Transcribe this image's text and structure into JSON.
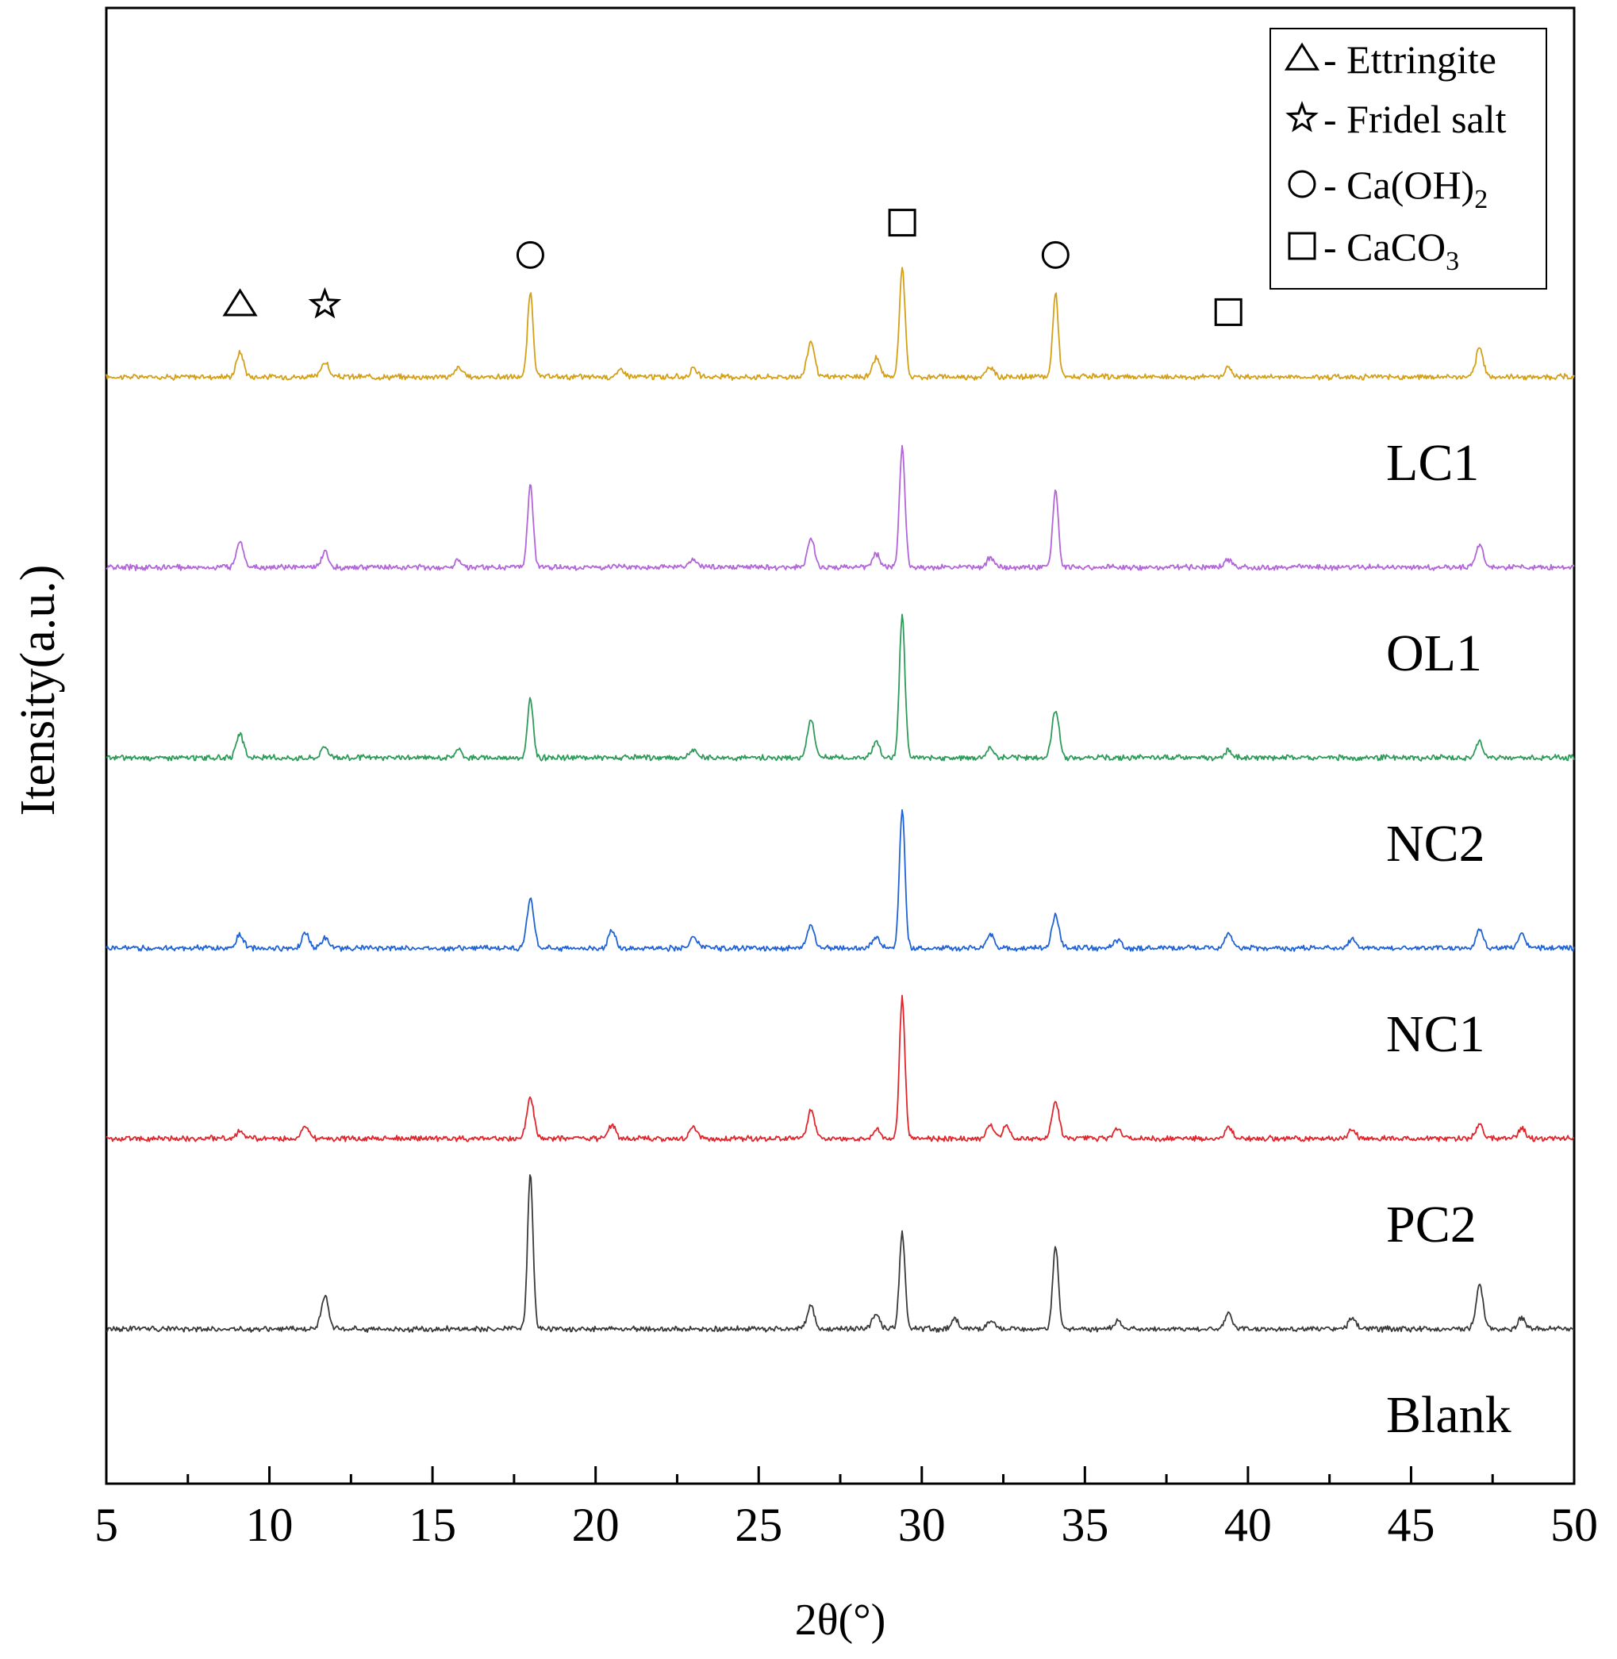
{
  "chart_data": {
    "type": "line",
    "title": "",
    "xlabel": "2θ(°)",
    "ylabel": "Itensity(a.u.)",
    "xlim": [
      5,
      50
    ],
    "xticks": [
      "5",
      "10",
      "15",
      "20",
      "25",
      "30",
      "35",
      "40",
      "45",
      "50"
    ],
    "yticks": [],
    "baseline_offsets": {
      "LC1": 5,
      "OL1": 4,
      "NC2": 3,
      "NC1": 2,
      "PC2": 1,
      "Blank": 0
    },
    "series": [
      {
        "name": "LC1",
        "color": "#D4A017",
        "offset": 5,
        "peaks": [
          [
            9.1,
            0.13
          ],
          [
            11.7,
            0.08
          ],
          [
            15.8,
            0.05
          ],
          [
            18.0,
            0.44
          ],
          [
            20.8,
            0.04
          ],
          [
            23.0,
            0.04
          ],
          [
            26.6,
            0.19
          ],
          [
            28.6,
            0.1
          ],
          [
            29.4,
            0.58
          ],
          [
            32.1,
            0.05
          ],
          [
            34.1,
            0.44
          ],
          [
            39.4,
            0.05
          ],
          [
            47.1,
            0.15
          ]
        ]
      },
      {
        "name": "OL1",
        "color": "#B266D9",
        "offset": 4,
        "peaks": [
          [
            9.1,
            0.14
          ],
          [
            11.7,
            0.08
          ],
          [
            15.8,
            0.04
          ],
          [
            18.0,
            0.43
          ],
          [
            23.0,
            0.04
          ],
          [
            26.6,
            0.15
          ],
          [
            28.6,
            0.07
          ],
          [
            29.4,
            0.63
          ],
          [
            32.1,
            0.05
          ],
          [
            34.1,
            0.41
          ],
          [
            39.4,
            0.04
          ],
          [
            47.1,
            0.12
          ]
        ]
      },
      {
        "name": "NC2",
        "color": "#2E9B5A",
        "offset": 3,
        "peaks": [
          [
            9.1,
            0.12
          ],
          [
            11.7,
            0.06
          ],
          [
            15.8,
            0.04
          ],
          [
            18.0,
            0.31
          ],
          [
            23.0,
            0.04
          ],
          [
            26.6,
            0.2
          ],
          [
            28.6,
            0.08
          ],
          [
            29.4,
            0.75
          ],
          [
            32.1,
            0.05
          ],
          [
            34.1,
            0.25
          ],
          [
            39.4,
            0.04
          ],
          [
            47.1,
            0.08
          ]
        ]
      },
      {
        "name": "NC1",
        "color": "#1F63D6",
        "offset": 2,
        "peaks": [
          [
            9.1,
            0.07
          ],
          [
            11.1,
            0.08
          ],
          [
            11.7,
            0.05
          ],
          [
            18.0,
            0.25
          ],
          [
            20.5,
            0.09
          ],
          [
            23.0,
            0.06
          ],
          [
            26.6,
            0.12
          ],
          [
            28.6,
            0.06
          ],
          [
            29.4,
            0.73
          ],
          [
            32.1,
            0.07
          ],
          [
            34.1,
            0.17
          ],
          [
            36.0,
            0.04
          ],
          [
            39.4,
            0.08
          ],
          [
            43.2,
            0.05
          ],
          [
            47.1,
            0.1
          ],
          [
            48.4,
            0.07
          ]
        ]
      },
      {
        "name": "PC2",
        "color": "#E0262C",
        "offset": 1,
        "peaks": [
          [
            9.1,
            0.04
          ],
          [
            11.1,
            0.07
          ],
          [
            18.0,
            0.21
          ],
          [
            20.5,
            0.07
          ],
          [
            23.0,
            0.06
          ],
          [
            26.6,
            0.15
          ],
          [
            28.6,
            0.05
          ],
          [
            29.4,
            0.74
          ],
          [
            32.1,
            0.07
          ],
          [
            32.6,
            0.07
          ],
          [
            34.1,
            0.19
          ],
          [
            36.0,
            0.05
          ],
          [
            39.4,
            0.06
          ],
          [
            43.2,
            0.05
          ],
          [
            47.1,
            0.07
          ],
          [
            48.4,
            0.05
          ]
        ]
      },
      {
        "name": "Blank",
        "color": "#3A3A3A",
        "offset": 0,
        "peaks": [
          [
            11.7,
            0.18
          ],
          [
            18.0,
            0.81
          ],
          [
            26.6,
            0.12
          ],
          [
            28.6,
            0.08
          ],
          [
            29.4,
            0.51
          ],
          [
            31.0,
            0.05
          ],
          [
            32.1,
            0.04
          ],
          [
            34.1,
            0.44
          ],
          [
            36.0,
            0.04
          ],
          [
            39.4,
            0.08
          ],
          [
            43.2,
            0.06
          ],
          [
            47.1,
            0.23
          ],
          [
            48.4,
            0.06
          ]
        ]
      }
    ],
    "phase_markers": [
      {
        "symbol": "triangle",
        "x": 9.1,
        "level": 5.38
      },
      {
        "symbol": "star",
        "x": 11.7,
        "level": 5.38
      },
      {
        "symbol": "circle",
        "x": 18.0,
        "level": 5.64
      },
      {
        "symbol": "square",
        "x": 29.4,
        "level": 5.81
      },
      {
        "symbol": "circle",
        "x": 34.1,
        "level": 5.64
      },
      {
        "symbol": "square",
        "x": 39.4,
        "level": 5.34
      }
    ],
    "legend": {
      "position": "top-right",
      "entries": [
        {
          "symbol": "triangle",
          "label": "- Ettringite"
        },
        {
          "symbol": "star",
          "label": "- Fridel salt"
        },
        {
          "symbol": "circle",
          "label": "- Ca(OH)",
          "sub": "2"
        },
        {
          "symbol": "square",
          "label": "- CaCO",
          "sub": "3"
        }
      ]
    }
  }
}
